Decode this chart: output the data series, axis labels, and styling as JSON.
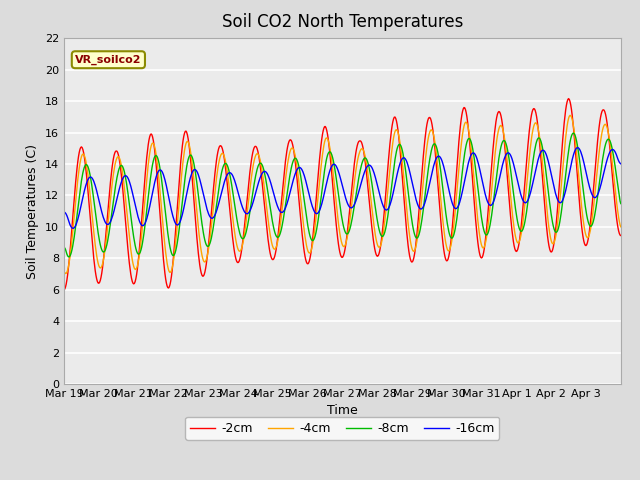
{
  "title": "Soil CO2 North Temperatures",
  "xlabel": "Time",
  "ylabel": "Soil Temperatures (C)",
  "annotation": "VR_soilco2",
  "ylim": [
    0,
    22
  ],
  "xtick_labels": [
    "Mar 19",
    "Mar 20",
    "Mar 21",
    "Mar 22",
    "Mar 23",
    "Mar 24",
    "Mar 25",
    "Mar 26",
    "Mar 27",
    "Mar 28",
    "Mar 29",
    "Mar 30",
    "Mar 31",
    "Apr 1",
    "Apr 2",
    "Apr 3"
  ],
  "legend_labels": [
    "-2cm",
    "-4cm",
    "-8cm",
    "-16cm"
  ],
  "line_colors": [
    "#FF0000",
    "#FFA500",
    "#00BB00",
    "#0000FF"
  ],
  "bg_color": "#DCDCDC",
  "plot_bg_color": "#EBEBEB",
  "title_fontsize": 12,
  "label_fontsize": 9,
  "tick_fontsize": 8,
  "n_days": 16,
  "pts_per_day": 48
}
